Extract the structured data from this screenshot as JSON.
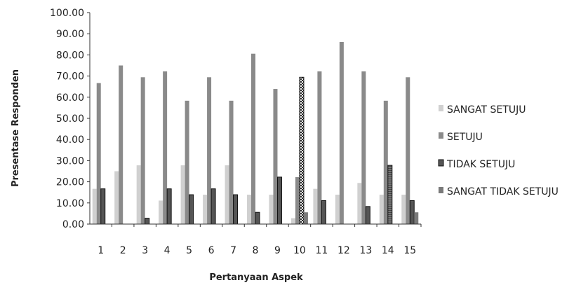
{
  "chart_data": {
    "type": "bar",
    "title": "",
    "xlabel": "Pertanyaan Aspek",
    "ylabel": "Presentase Responden",
    "ylim": [
      0,
      100
    ],
    "ytick_step": 10,
    "ytick_decimals": 2,
    "legend_position": "right",
    "grid": false,
    "categories": [
      "1",
      "2",
      "3",
      "4",
      "5",
      "6",
      "7",
      "8",
      "9",
      "10",
      "11",
      "12",
      "13",
      "14",
      "15"
    ],
    "series": [
      {
        "name": "SANGAT SETUJU",
        "color": "#d0d0d0",
        "pattern": "solid",
        "values": [
          16.67,
          25.0,
          27.78,
          11.11,
          27.78,
          13.89,
          27.78,
          13.89,
          13.89,
          2.78,
          16.67,
          13.89,
          19.44,
          13.89,
          13.89
        ]
      },
      {
        "name": "SETUJU",
        "color": "#8a8a8a",
        "pattern": "solid",
        "values": [
          66.67,
          75.0,
          69.44,
          72.22,
          58.33,
          69.44,
          58.33,
          80.56,
          63.89,
          22.22,
          72.22,
          86.11,
          72.22,
          58.33,
          69.44
        ]
      },
      {
        "name": "TIDAK SETUJU",
        "color": "#555555",
        "pattern": "solid",
        "values": [
          16.67,
          0.0,
          2.78,
          16.67,
          13.89,
          16.67,
          13.89,
          5.56,
          22.22,
          69.44,
          11.11,
          0.0,
          8.33,
          27.78,
          11.11
        ]
      },
      {
        "name": "SANGAT TIDAK SETUJU",
        "color": "#7a7a7a",
        "pattern": "solid",
        "values": [
          0,
          0,
          0,
          0,
          0,
          0,
          0,
          0,
          0,
          5.56,
          0,
          0,
          0,
          0,
          5.56
        ]
      }
    ]
  }
}
